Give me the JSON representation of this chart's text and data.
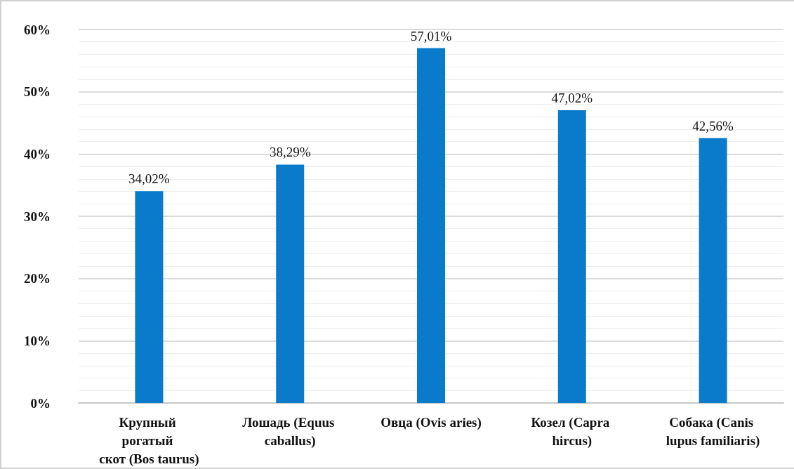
{
  "chart_data": {
    "type": "bar",
    "categories": [
      "Крупный рогатый скот (Bos taurus)",
      "Лошадь (Equus caballus)",
      "Овца (Ovis aries)",
      "Козел (Capra hircus)",
      "Собака (Canis lupus familiaris)"
    ],
    "values": [
      34.02,
      38.29,
      57.01,
      47.02,
      42.56
    ],
    "value_labels": [
      "34,02%",
      "38,29%",
      "57,01%",
      "47,02%",
      "42,56%"
    ],
    "color": "#0a7acb",
    "ylim": [
      0,
      60
    ],
    "yticks": [
      {
        "value": 0,
        "label": "0%"
      },
      {
        "value": 10,
        "label": "10%"
      },
      {
        "value": 20,
        "label": "20%"
      },
      {
        "value": 30,
        "label": "30%"
      },
      {
        "value": 40,
        "label": "40%"
      },
      {
        "value": 50,
        "label": "50%"
      },
      {
        "value": 60,
        "label": "60%"
      }
    ],
    "grid": true
  }
}
